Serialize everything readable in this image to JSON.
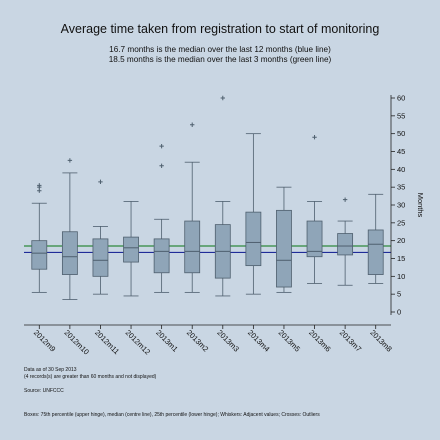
{
  "header": {
    "title": "Average time taken from registration to start of monitoring",
    "subtitle_1": "16.7 months is the median over the last 12 months (blue line)",
    "subtitle_2": "18.5 months is the median over the last 3 months (green line)"
  },
  "footer": {
    "note_date": "Data as of 30 Sep 2013",
    "note_excluded": "(4 records(s) are greater than 60 months and not displayed)",
    "note_source": "Source: UNFCCC",
    "legend_note": "Boxes: 75th percentile (upper hinge), median (centre line), 25th percentile (lower hinge); Whiskers: Adjacent values; Crosses: Outliers"
  },
  "colors": {
    "background": "#c9d6e3",
    "box_fill": "#8fa5b8",
    "box_stroke": "#4e5f6e",
    "median_12m_line": "#1f2c99",
    "median_3m_line": "#2f8a3d",
    "outlier": "#4e5f6e"
  },
  "chart_data": {
    "type": "box",
    "title": "Average time taken from registration to start of monitoring",
    "ylabel": "Months",
    "ylim": [
      0,
      60
    ],
    "yticks": [
      0,
      5,
      10,
      15,
      20,
      25,
      30,
      35,
      40,
      45,
      50,
      55,
      60
    ],
    "y_axis_side": "right",
    "reference_lines": [
      {
        "name": "median over the last 12 months",
        "value": 16.7,
        "color": "blue"
      },
      {
        "name": "median over the last 3 months",
        "value": 18.5,
        "color": "green"
      }
    ],
    "categories": [
      "2012m9",
      "2012m10",
      "2012m11",
      "2012m12",
      "2013m1",
      "2013m2",
      "2013m3",
      "2013m4",
      "2013m5",
      "2013m6",
      "2013m7",
      "2013m8"
    ],
    "boxes": [
      {
        "whisker_low": 5.5,
        "q1": 12,
        "median": 16.5,
        "q3": 20,
        "whisker_high": 30.5,
        "outliers": [
          34,
          35,
          35.5
        ]
      },
      {
        "whisker_low": 3.5,
        "q1": 10.5,
        "median": 15.5,
        "q3": 22.5,
        "whisker_high": 39,
        "outliers": [
          42.5
        ]
      },
      {
        "whisker_low": 5,
        "q1": 10,
        "median": 14.5,
        "q3": 20.5,
        "whisker_high": 24,
        "outliers": [
          36.5
        ]
      },
      {
        "whisker_low": 4.5,
        "q1": 14,
        "median": 18,
        "q3": 21,
        "whisker_high": 31,
        "outliers": []
      },
      {
        "whisker_low": 5.5,
        "q1": 11,
        "median": 17,
        "q3": 20.5,
        "whisker_high": 26,
        "outliers": [
          41,
          46.5
        ]
      },
      {
        "whisker_low": 5.5,
        "q1": 11,
        "median": 17,
        "q3": 25.5,
        "whisker_high": 42,
        "outliers": [
          52.5
        ]
      },
      {
        "whisker_low": 4.5,
        "q1": 9.5,
        "median": 17,
        "q3": 24.5,
        "whisker_high": 31,
        "outliers": [
          60
        ]
      },
      {
        "whisker_low": 5,
        "q1": 13,
        "median": 19.5,
        "q3": 28,
        "whisker_high": 50,
        "outliers": []
      },
      {
        "whisker_low": 5.5,
        "q1": 7,
        "median": 14.5,
        "q3": 28.5,
        "whisker_high": 35,
        "outliers": []
      },
      {
        "whisker_low": 8,
        "q1": 15.5,
        "median": 17,
        "q3": 25.5,
        "whisker_high": 31,
        "outliers": [
          49
        ]
      },
      {
        "whisker_low": 7.5,
        "q1": 16,
        "median": 18.5,
        "q3": 22,
        "whisker_high": 25.5,
        "outliers": [
          31.5
        ]
      },
      {
        "whisker_low": 8,
        "q1": 10.5,
        "median": 19,
        "q3": 23,
        "whisker_high": 33,
        "outliers": []
      }
    ]
  }
}
